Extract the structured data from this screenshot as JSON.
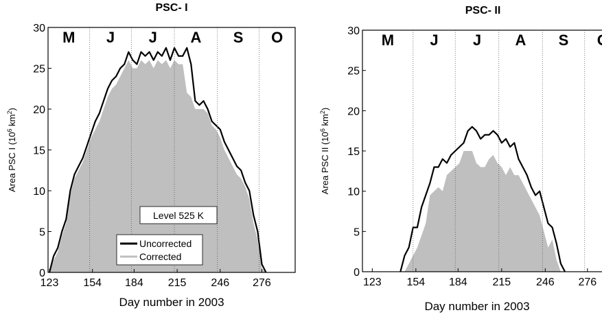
{
  "chart_data": [
    {
      "type": "line",
      "title": "PSC- I",
      "xlabel": "Day number in 2003",
      "ylabel_parts": [
        "Area PSC I (10",
        "6",
        " km",
        "2",
        ")"
      ],
      "annotation": "Level 525 K",
      "months": [
        "M",
        "J",
        "J",
        "A",
        "S",
        "O"
      ],
      "month_boundaries": [
        152,
        182,
        213,
        244,
        274
      ],
      "xlim": [
        122,
        300
      ],
      "ylim": [
        0,
        30
      ],
      "xticks": [
        123,
        154,
        184,
        215,
        246,
        276
      ],
      "yticks": [
        0,
        5,
        10,
        15,
        20,
        25,
        30
      ],
      "legend": true,
      "x": [
        123,
        126,
        129,
        132,
        135,
        138,
        141,
        144,
        147,
        150,
        153,
        156,
        159,
        162,
        165,
        168,
        171,
        174,
        177,
        180,
        183,
        186,
        189,
        192,
        195,
        198,
        201,
        204,
        207,
        210,
        213,
        216,
        219,
        222,
        225,
        228,
        231,
        234,
        237,
        240,
        243,
        246,
        249,
        252,
        255,
        258,
        261,
        264,
        267,
        270,
        273,
        276,
        279
      ],
      "series": [
        {
          "name": "Uncorrected",
          "color": "#000000",
          "style": "line",
          "values": [
            0,
            2,
            3,
            5,
            6.5,
            10,
            12,
            13,
            14,
            15.5,
            17,
            18.5,
            19.5,
            21,
            22.5,
            23.5,
            24,
            25,
            25.5,
            27,
            26,
            25.5,
            27,
            26.5,
            27,
            26,
            27,
            26.5,
            27.5,
            26,
            27.5,
            26.5,
            26.5,
            27.5,
            25.5,
            21,
            20.5,
            21,
            20,
            18.5,
            18,
            17.5,
            16,
            15,
            14,
            13,
            12.5,
            11,
            10,
            7,
            5,
            1,
            0
          ]
        },
        {
          "name": "Corrected",
          "color": "#bfbfbf",
          "style": "area",
          "values": [
            0,
            1.5,
            2.5,
            4.5,
            6,
            9.5,
            11.5,
            12.5,
            13.5,
            15,
            16.5,
            17.5,
            18.5,
            20,
            21.5,
            22.5,
            23,
            24,
            25,
            26,
            25,
            25,
            26,
            25.5,
            26,
            25,
            26,
            25.5,
            26,
            25,
            26,
            25.5,
            25.5,
            22,
            21.5,
            20,
            20,
            20,
            19.5,
            18,
            17.5,
            16.5,
            15,
            14,
            13,
            12,
            11.5,
            10.5,
            9,
            6,
            4,
            0.5,
            0
          ]
        }
      ]
    },
    {
      "type": "line",
      "title": "PSC- II",
      "xlabel": "Day number in 2003",
      "ylabel_parts": [
        "Area PSC II (10",
        "6",
        " km",
        "2",
        ")"
      ],
      "months": [
        "M",
        "J",
        "J",
        "A",
        "S",
        "O"
      ],
      "month_boundaries": [
        152,
        182,
        213,
        244,
        274
      ],
      "xlim": [
        116,
        300
      ],
      "ylim": [
        0,
        30
      ],
      "xticks": [
        123,
        154,
        184,
        215,
        246,
        276
      ],
      "yticks": [
        0,
        5,
        10,
        15,
        20,
        25,
        30
      ],
      "legend": false,
      "x": [
        143,
        146,
        149,
        152,
        155,
        158,
        161,
        164,
        167,
        170,
        173,
        176,
        179,
        182,
        185,
        188,
        191,
        194,
        197,
        200,
        203,
        206,
        209,
        212,
        215,
        218,
        221,
        224,
        227,
        230,
        233,
        236,
        239,
        242,
        245,
        248,
        251,
        254,
        257,
        260
      ],
      "series": [
        {
          "name": "Uncorrected",
          "color": "#000000",
          "style": "line",
          "values": [
            0,
            2,
            3,
            5.5,
            5.5,
            8,
            9.5,
            11,
            13,
            13,
            14,
            13.5,
            14.5,
            15,
            15.5,
            16,
            17.5,
            18,
            17.5,
            16.5,
            17,
            17,
            17.5,
            17,
            16,
            16.5,
            15.5,
            16,
            14,
            13,
            12,
            10.5,
            9.5,
            10,
            8,
            6,
            5.5,
            3.5,
            1,
            0
          ]
        },
        {
          "name": "Corrected",
          "color": "#bfbfbf",
          "style": "area",
          "values": [
            0,
            0,
            1,
            2,
            3,
            4.5,
            6,
            9.5,
            10,
            10.5,
            10,
            12,
            12.5,
            13,
            13.5,
            15,
            15,
            15,
            13.5,
            13,
            13,
            14,
            14.5,
            13.5,
            13,
            12,
            13,
            12,
            12,
            11,
            10,
            9,
            8,
            7,
            5,
            3,
            4,
            1.5,
            0,
            0
          ]
        }
      ]
    }
  ]
}
